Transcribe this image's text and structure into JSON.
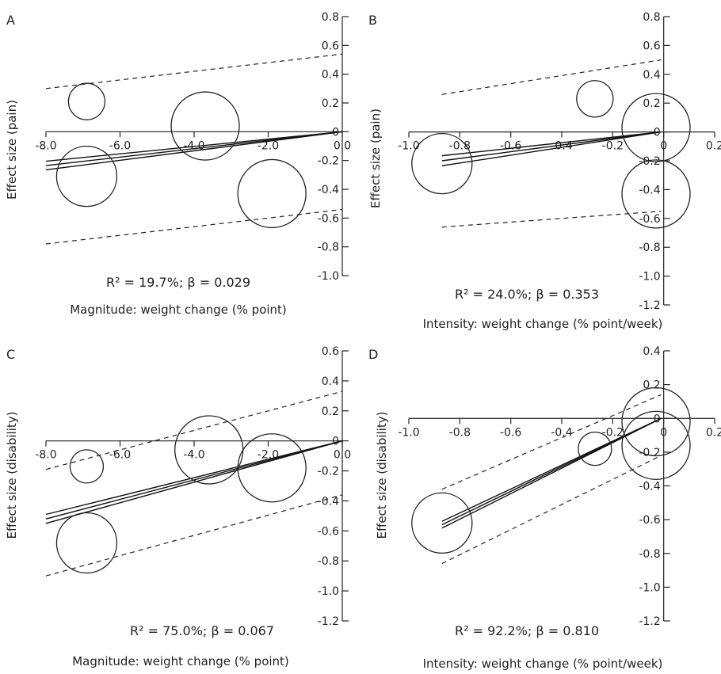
{
  "chart_data": [
    {
      "panel": "A",
      "type": "scatter",
      "ylabel": "Effect size (pain)",
      "xlabel": "Magnitude: weight change (% point)",
      "stats": "R² = 19.7%; β = 0.029",
      "xlim": [
        -8.0,
        0.0
      ],
      "ylim": [
        -1.0,
        0.8
      ],
      "xticks": [
        -8.0,
        -6.0,
        -4.0,
        -2.0,
        0.0
      ],
      "xtick_labels": [
        "-8.0",
        "-6.0",
        "-4.0",
        "-2.0",
        "0.0"
      ],
      "yticks": [
        -1.0,
        -0.8,
        -0.6,
        -0.4,
        -0.2,
        0,
        0.2,
        0.4,
        0.6,
        0.8
      ],
      "ytick_labels": [
        "-1.0",
        "-0.8",
        "-0.6",
        "-0.4",
        "-0.2",
        "0",
        "0.2",
        "0.4",
        "0.6",
        "0.8"
      ],
      "points": [
        {
          "x": -6.9,
          "y": 0.21,
          "size": "small"
        },
        {
          "x": -3.7,
          "y": 0.04,
          "size": "large"
        },
        {
          "x": -6.9,
          "y": -0.31,
          "size": "medium"
        },
        {
          "x": -1.9,
          "y": -0.43,
          "size": "large"
        }
      ],
      "regression": {
        "x": [
          -8.0,
          0.0
        ],
        "center": [
          -0.235,
          0.0
        ],
        "inner_band": 0.03
      },
      "ci_bands": [
        {
          "x": [
            -8.0,
            0.0
          ],
          "y": [
            0.3,
            0.54
          ]
        },
        {
          "x": [
            -8.0,
            0.0
          ],
          "y": [
            -0.78,
            -0.54
          ]
        }
      ]
    },
    {
      "panel": "B",
      "type": "scatter",
      "ylabel": "Effect size (pain)",
      "xlabel": "Intensity: weight change (% point/week)",
      "stats": "R² = 24.0%; β = 0.353",
      "xlim": [
        -1.0,
        0.2
      ],
      "ylim": [
        -1.2,
        0.8
      ],
      "xticks": [
        -1.0,
        -0.8,
        -0.6,
        -0.4,
        -0.2,
        0,
        0.2
      ],
      "xtick_labels": [
        "-1.0",
        "-0.8",
        "-0.6",
        "-0.4",
        "-0.2",
        "0",
        "0.2"
      ],
      "yticks": [
        -1.2,
        -1.0,
        -0.8,
        -0.6,
        -0.4,
        -0.2,
        0,
        0.2,
        0.4,
        0.6,
        0.8
      ],
      "ytick_labels": [
        "-1.2",
        "-1.0",
        "-0.8",
        "-0.6",
        "-0.4",
        "-0.2",
        "0",
        "0.2",
        "0.4",
        "0.6",
        "0.8"
      ],
      "points": [
        {
          "x": -0.27,
          "y": 0.23,
          "size": "small"
        },
        {
          "x": -0.03,
          "y": 0.03,
          "size": "large"
        },
        {
          "x": -0.87,
          "y": -0.22,
          "size": "medium"
        },
        {
          "x": -0.03,
          "y": -0.43,
          "size": "large"
        }
      ],
      "regression": {
        "x": [
          -0.87,
          -0.01
        ],
        "center": [
          -0.2,
          0.0
        ],
        "inner_band": 0.035
      },
      "ci_bands": [
        {
          "x": [
            -0.87,
            -0.01
          ],
          "y": [
            0.26,
            0.5
          ]
        },
        {
          "x": [
            -0.87,
            -0.01
          ],
          "y": [
            -0.66,
            -0.55
          ]
        }
      ]
    },
    {
      "panel": "C",
      "type": "scatter",
      "ylabel": "Effect size (disability)",
      "xlabel": "Magnitude: weight change (% point)",
      "stats": "R² = 75.0%; β = 0.067",
      "xlim": [
        -8.0,
        0.0
      ],
      "ylim": [
        -1.2,
        0.6
      ],
      "xticks": [
        -8.0,
        -6.0,
        -4.0,
        -2.0,
        0.0
      ],
      "xtick_labels": [
        "-8.0",
        "-6.0",
        "-4.0",
        "-2.0",
        "0.0"
      ],
      "yticks": [
        -1.2,
        -1.0,
        -0.8,
        -0.6,
        -0.4,
        -0.2,
        0,
        0.2,
        0.4,
        0.6
      ],
      "ytick_labels": [
        "-1.2",
        "-1.0",
        "-0.8",
        "-0.6",
        "-0.4",
        "-0.2",
        "0",
        "0.2",
        "0.4",
        "0.6"
      ],
      "points": [
        {
          "x": -6.9,
          "y": -0.17,
          "size": "small"
        },
        {
          "x": -3.6,
          "y": -0.06,
          "size": "large"
        },
        {
          "x": -1.9,
          "y": -0.18,
          "size": "large"
        },
        {
          "x": -6.9,
          "y": -0.68,
          "size": "medium"
        }
      ],
      "regression": {
        "x": [
          -8.0,
          0.0
        ],
        "center": [
          -0.52,
          0.0
        ],
        "inner_band": 0.03
      },
      "ci_bands": [
        {
          "x": [
            -8.0,
            0.0
          ],
          "y": [
            -0.19,
            0.33
          ]
        },
        {
          "x": [
            -8.0,
            0.0
          ],
          "y": [
            -0.9,
            -0.36
          ]
        }
      ]
    },
    {
      "panel": "D",
      "type": "scatter",
      "ylabel": "Effect size (disability)",
      "xlabel": "Intensity: weight change (% point/week)",
      "stats": "R² = 92.2%; β = 0.810",
      "xlim": [
        -1.0,
        0.2
      ],
      "ylim": [
        -1.2,
        0.4
      ],
      "xticks": [
        -1.0,
        -0.8,
        -0.6,
        -0.4,
        -0.2,
        0,
        0.2
      ],
      "xtick_labels": [
        "-1.0",
        "-0.8",
        "-0.6",
        "-0.4",
        "-0.2",
        "0",
        "0.2"
      ],
      "yticks": [
        -1.2,
        -1.0,
        -0.8,
        -0.6,
        -0.4,
        -0.2,
        0,
        0.2,
        0.4
      ],
      "ytick_labels": [
        "-1.2",
        "-1.0",
        "-0.8",
        "-0.6",
        "-0.4",
        "-0.2",
        "0",
        "0.2",
        "0.4"
      ],
      "points": [
        {
          "x": -0.03,
          "y": -0.02,
          "size": "large"
        },
        {
          "x": -0.27,
          "y": -0.18,
          "size": "small"
        },
        {
          "x": -0.03,
          "y": -0.16,
          "size": "large"
        },
        {
          "x": -0.87,
          "y": -0.62,
          "size": "medium"
        }
      ],
      "regression": {
        "x": [
          -0.87,
          -0.01
        ],
        "center": [
          -0.63,
          0.0
        ],
        "inner_band": 0.02
      },
      "ci_bands": [
        {
          "x": [
            -0.87,
            -0.01
          ],
          "y": [
            -0.42,
            0.14
          ]
        },
        {
          "x": [
            -0.87,
            -0.01
          ],
          "y": [
            -0.86,
            -0.22
          ]
        }
      ]
    }
  ]
}
